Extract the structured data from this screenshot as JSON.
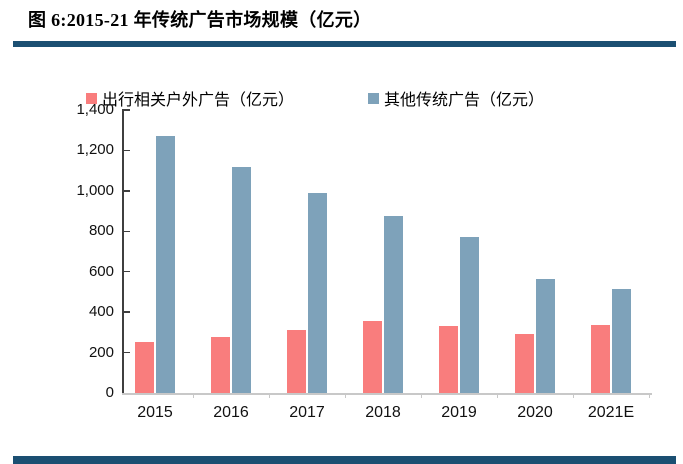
{
  "figure": {
    "title": "图 6:2015-21 年传统广告市场规模（亿元）"
  },
  "colors": {
    "accent_rule": "#1b4f72",
    "series_red": "#f97d7d",
    "series_blue": "#7ea2ba",
    "y_axis_line": "#3f3f3f",
    "x_axis_line": "#c8c8c8",
    "label_text": "#111111"
  },
  "chart_data": {
    "type": "bar",
    "title": "图 6:2015-21 年传统广告市场规模（亿元）",
    "categories": [
      "2015",
      "2016",
      "2017",
      "2018",
      "2019",
      "2020",
      "2021E"
    ],
    "series": [
      {
        "name": "出行相关户外广告（亿元）",
        "color": "#f97d7d",
        "values": [
          250,
          275,
          310,
          355,
          330,
          290,
          335
        ]
      },
      {
        "name": "其他传统广告（亿元）",
        "color": "#7ea2ba",
        "values": [
          1270,
          1120,
          990,
          875,
          770,
          565,
          515
        ]
      }
    ],
    "xlabel": "",
    "ylabel": "",
    "ylim": [
      0,
      1400
    ],
    "ytick_step": 200,
    "ytick_labels": [
      "0",
      "200",
      "400",
      "600",
      "800",
      "1,000",
      "1,200",
      "1,400"
    ],
    "legend_position": "top",
    "grid": false
  }
}
